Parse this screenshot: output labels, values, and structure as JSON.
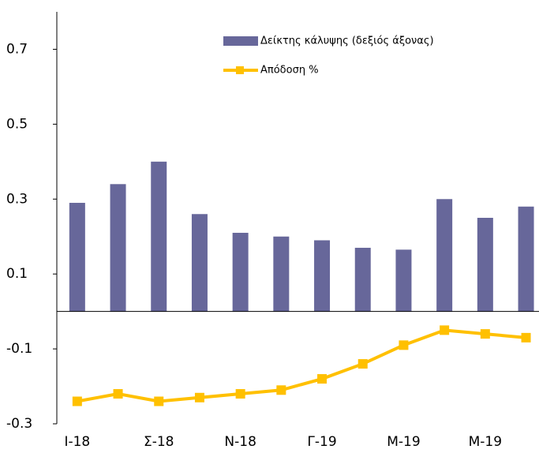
{
  "chart_data": {
    "type": "bar_line",
    "categories": [
      "Ι-18",
      null,
      "Σ-18",
      null,
      "Ν-18",
      null,
      "Γ-19",
      null,
      "Μ-19",
      null,
      "Μ-19",
      null
    ],
    "series": [
      {
        "name": "Δείκτης κάλυψης (δεξιός άξονας)",
        "type": "bar",
        "color": "#67679a",
        "values": [
          0.29,
          0.34,
          0.4,
          0.26,
          0.21,
          0.2,
          0.19,
          0.17,
          0.165,
          0.3,
          0.25,
          0.28
        ]
      },
      {
        "name": "Απόδοση %",
        "type": "line",
        "color": "#ffc000",
        "values": [
          -0.24,
          -0.22,
          -0.24,
          -0.23,
          -0.22,
          -0.21,
          -0.18,
          -0.14,
          -0.09,
          -0.05,
          -0.06,
          -0.07
        ]
      }
    ],
    "ylim": [
      -0.3,
      0.8
    ],
    "yticks": [
      0.7,
      0.5,
      0.3,
      0.1,
      -0.1,
      -0.3
    ]
  }
}
